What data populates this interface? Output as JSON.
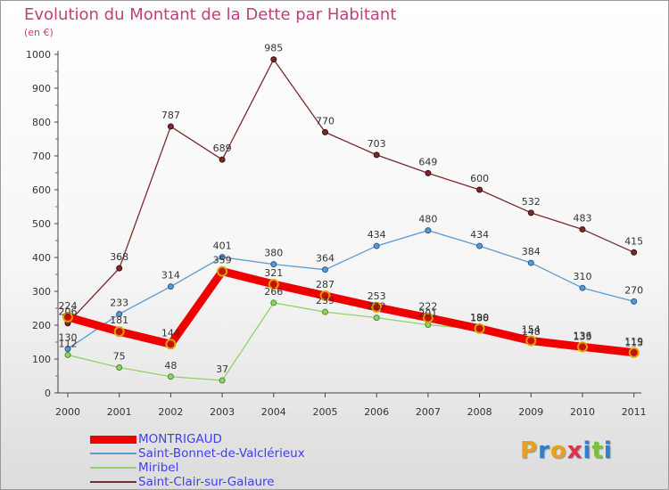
{
  "header": {
    "title": "Evolution du Montant de la Dette par Habitant",
    "unit": "(en €)"
  },
  "logo": {
    "text": "Proxiti",
    "letters": [
      {
        "ch": "P",
        "color": "#e8a020"
      },
      {
        "ch": "r",
        "color": "#2f7fd0"
      },
      {
        "ch": "o",
        "color": "#e8a020"
      },
      {
        "ch": "x",
        "color": "#e03050"
      },
      {
        "ch": "i",
        "color": "#2f7fd0"
      },
      {
        "ch": "t",
        "color": "#7cc03a"
      },
      {
        "ch": "i",
        "color": "#2f7fd0"
      }
    ]
  },
  "chart_data": {
    "type": "line",
    "title": "Evolution du Montant de la Dette par Habitant",
    "ylabel": "(en €)",
    "xlabel": "",
    "x": [
      "2000",
      "2001",
      "2002",
      "2003",
      "2004",
      "2005",
      "2006",
      "2007",
      "2008",
      "2009",
      "2010",
      "2011"
    ],
    "ylim": [
      0,
      1000
    ],
    "yticks": [
      "0",
      "100",
      "200",
      "300",
      "400",
      "500",
      "600",
      "700",
      "800",
      "900",
      "1000"
    ],
    "grid": false,
    "legend_position": "bottom-left",
    "series": [
      {
        "name": "MONTRIGAUD",
        "color": "#ee0000",
        "values": [
          224,
          181,
          144,
          359,
          321,
          287,
          253,
          222,
          190,
          154,
          136,
          119
        ]
      },
      {
        "name": "Saint-Bonnet-de-Valclérieux",
        "color": "#5a9ad2",
        "values": [
          130,
          233,
          314,
          401,
          380,
          364,
          434,
          480,
          434,
          384,
          310,
          270
        ]
      },
      {
        "name": "Miribel",
        "color": "#8ed36a",
        "values": [
          112,
          75,
          48,
          37,
          266,
          239,
          222,
          201,
          188,
          148,
          133,
          115
        ]
      },
      {
        "name": "Saint-Clair-sur-Galaure",
        "color": "#7a2a2a",
        "values": [
          206,
          368,
          787,
          689,
          985,
          770,
          703,
          649,
          600,
          532,
          483,
          415
        ]
      }
    ]
  }
}
